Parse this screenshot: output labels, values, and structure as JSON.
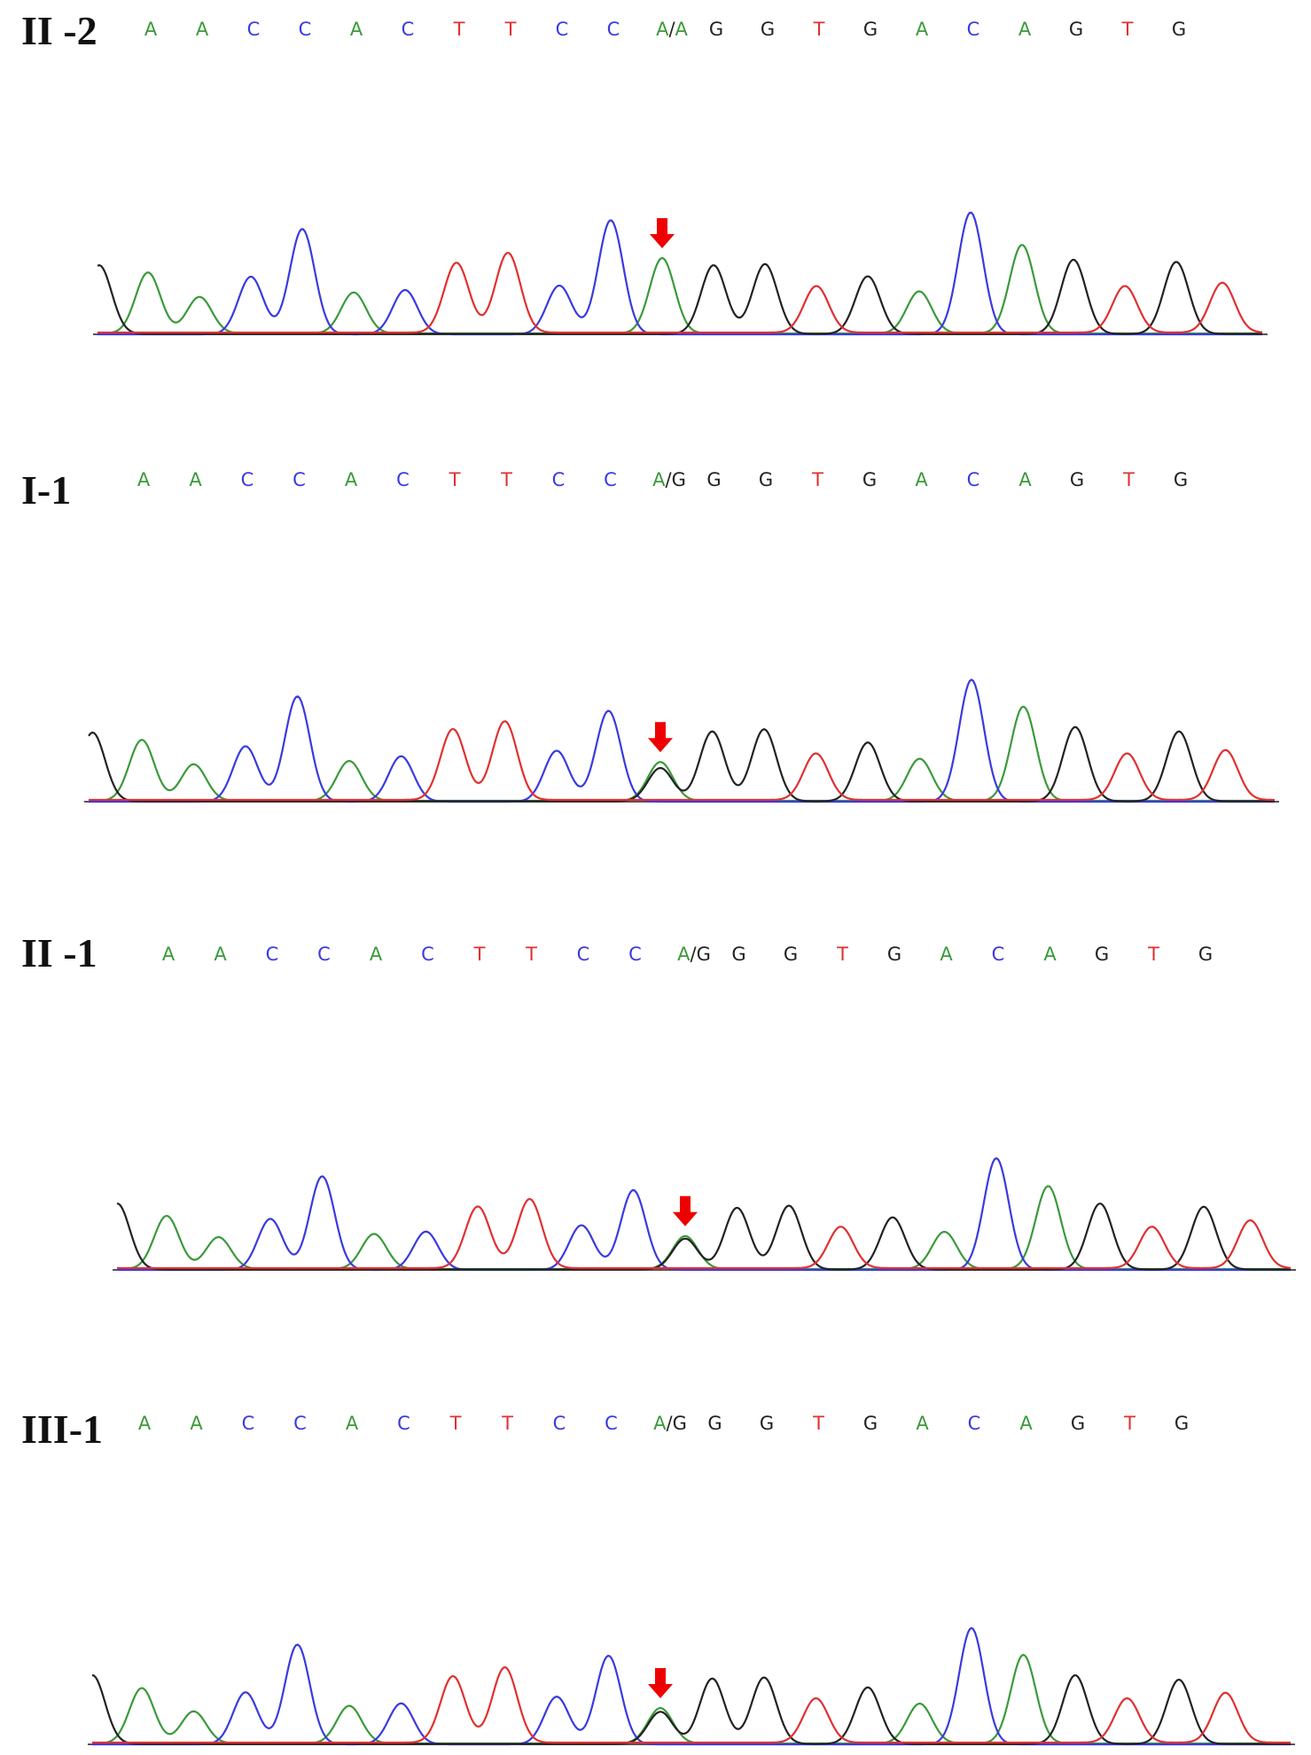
{
  "colors": {
    "A": "#3a9a3a",
    "C": "#3a3ae0",
    "G": "#222222",
    "T": "#e03030",
    "arrow": "#ee0000"
  },
  "chart_data": [
    {
      "type": "chromatogram",
      "label": "II -2",
      "bases": [
        "A",
        "A",
        "C",
        "C",
        "A",
        "C",
        "T",
        "T",
        "C",
        "C",
        "A/A",
        "G",
        "G",
        "T",
        "G",
        "A",
        "C",
        "A",
        "G",
        "T",
        "G"
      ],
      "peaks": [
        [
          {
            "base": "A",
            "h": 0.55
          }
        ],
        [
          {
            "base": "A",
            "h": 0.33
          }
        ],
        [
          {
            "base": "C",
            "h": 0.52
          }
        ],
        [
          {
            "base": "C",
            "h": 0.95
          }
        ],
        [
          {
            "base": "A",
            "h": 0.37
          }
        ],
        [
          {
            "base": "C",
            "h": 0.4
          }
        ],
        [
          {
            "base": "T",
            "h": 0.63
          }
        ],
        [
          {
            "base": "T",
            "h": 0.72
          }
        ],
        [
          {
            "base": "C",
            "h": 0.44
          }
        ],
        [
          {
            "base": "C",
            "h": 1.03
          }
        ],
        [
          {
            "base": "A",
            "h": 0.68
          }
        ],
        [
          {
            "base": "G",
            "h": 0.62
          }
        ],
        [
          {
            "base": "G",
            "h": 0.63
          }
        ],
        [
          {
            "base": "T",
            "h": 0.42
          }
        ],
        [
          {
            "base": "G",
            "h": 0.52
          }
        ],
        [
          {
            "base": "A",
            "h": 0.38
          }
        ],
        [
          {
            "base": "C",
            "h": 1.1
          }
        ],
        [
          {
            "base": "A",
            "h": 0.8
          }
        ],
        [
          {
            "base": "G",
            "h": 0.67
          }
        ],
        [
          {
            "base": "T",
            "h": 0.42
          }
        ],
        [
          {
            "base": "G",
            "h": 0.65
          }
        ]
      ],
      "mutation_index": 10
    },
    {
      "type": "chromatogram",
      "label": "I-1",
      "bases": [
        "A",
        "A",
        "C",
        "C",
        "A",
        "C",
        "T",
        "T",
        "C",
        "C",
        "A/G",
        "G",
        "G",
        "T",
        "G",
        "A",
        "C",
        "A",
        "G",
        "T",
        "G"
      ],
      "peaks": [
        [
          {
            "base": "A",
            "h": 0.55
          }
        ],
        [
          {
            "base": "A",
            "h": 0.33
          }
        ],
        [
          {
            "base": "C",
            "h": 0.5
          }
        ],
        [
          {
            "base": "C",
            "h": 0.95
          }
        ],
        [
          {
            "base": "A",
            "h": 0.36
          }
        ],
        [
          {
            "base": "C",
            "h": 0.41
          }
        ],
        [
          {
            "base": "T",
            "h": 0.64
          }
        ],
        [
          {
            "base": "T",
            "h": 0.71
          }
        ],
        [
          {
            "base": "C",
            "h": 0.46
          }
        ],
        [
          {
            "base": "C",
            "h": 0.82
          }
        ],
        [
          {
            "base": "A",
            "h": 0.35
          },
          {
            "base": "G",
            "h": 0.3
          }
        ],
        [
          {
            "base": "G",
            "h": 0.63
          }
        ],
        [
          {
            "base": "G",
            "h": 0.65
          }
        ],
        [
          {
            "base": "T",
            "h": 0.42
          }
        ],
        [
          {
            "base": "G",
            "h": 0.53
          }
        ],
        [
          {
            "base": "A",
            "h": 0.38
          }
        ],
        [
          {
            "base": "C",
            "h": 1.1
          }
        ],
        [
          {
            "base": "A",
            "h": 0.85
          }
        ],
        [
          {
            "base": "G",
            "h": 0.67
          }
        ],
        [
          {
            "base": "T",
            "h": 0.42
          }
        ],
        [
          {
            "base": "G",
            "h": 0.63
          }
        ]
      ],
      "mutation_index": 10
    },
    {
      "type": "chromatogram",
      "label": "II -1",
      "bases": [
        "A",
        "A",
        "C",
        "C",
        "A",
        "C",
        "T",
        "T",
        "C",
        "C",
        "A/G",
        "G",
        "G",
        "T",
        "G",
        "A",
        "C",
        "A",
        "G",
        "T",
        "G"
      ],
      "peaks": [
        [
          {
            "base": "A",
            "h": 0.5
          }
        ],
        [
          {
            "base": "A",
            "h": 0.3
          }
        ],
        [
          {
            "base": "C",
            "h": 0.48
          }
        ],
        [
          {
            "base": "C",
            "h": 0.88
          }
        ],
        [
          {
            "base": "A",
            "h": 0.33
          }
        ],
        [
          {
            "base": "C",
            "h": 0.36
          }
        ],
        [
          {
            "base": "T",
            "h": 0.58
          }
        ],
        [
          {
            "base": "T",
            "h": 0.65
          }
        ],
        [
          {
            "base": "C",
            "h": 0.42
          }
        ],
        [
          {
            "base": "C",
            "h": 0.75
          }
        ],
        [
          {
            "base": "A",
            "h": 0.31
          },
          {
            "base": "G",
            "h": 0.29
          }
        ],
        [
          {
            "base": "G",
            "h": 0.58
          }
        ],
        [
          {
            "base": "G",
            "h": 0.6
          }
        ],
        [
          {
            "base": "T",
            "h": 0.39
          }
        ],
        [
          {
            "base": "G",
            "h": 0.49
          }
        ],
        [
          {
            "base": "A",
            "h": 0.35
          }
        ],
        [
          {
            "base": "C",
            "h": 1.05
          }
        ],
        [
          {
            "base": "A",
            "h": 0.78
          }
        ],
        [
          {
            "base": "G",
            "h": 0.62
          }
        ],
        [
          {
            "base": "T",
            "h": 0.39
          }
        ],
        [
          {
            "base": "G",
            "h": 0.59
          }
        ]
      ],
      "mutation_index": 10
    },
    {
      "type": "chromatogram",
      "label": "III-1",
      "bases": [
        "A",
        "A",
        "C",
        "C",
        "A",
        "C",
        "T",
        "T",
        "C",
        "C",
        "A/G",
        "G",
        "G",
        "T",
        "G",
        "A",
        "C",
        "A",
        "G",
        "T",
        "G"
      ],
      "peaks": [
        [
          {
            "base": "A",
            "h": 0.5
          }
        ],
        [
          {
            "base": "A",
            "h": 0.29
          }
        ],
        [
          {
            "base": "C",
            "h": 0.47
          }
        ],
        [
          {
            "base": "C",
            "h": 0.9
          }
        ],
        [
          {
            "base": "A",
            "h": 0.34
          }
        ],
        [
          {
            "base": "C",
            "h": 0.37
          }
        ],
        [
          {
            "base": "T",
            "h": 0.6
          }
        ],
        [
          {
            "base": "T",
            "h": 0.68
          }
        ],
        [
          {
            "base": "C",
            "h": 0.43
          }
        ],
        [
          {
            "base": "C",
            "h": 0.8
          }
        ],
        [
          {
            "base": "A",
            "h": 0.32
          },
          {
            "base": "G",
            "h": 0.29
          }
        ],
        [
          {
            "base": "G",
            "h": 0.59
          }
        ],
        [
          {
            "base": "G",
            "h": 0.6
          }
        ],
        [
          {
            "base": "T",
            "h": 0.4
          }
        ],
        [
          {
            "base": "G",
            "h": 0.51
          }
        ],
        [
          {
            "base": "A",
            "h": 0.36
          }
        ],
        [
          {
            "base": "C",
            "h": 1.05
          }
        ],
        [
          {
            "base": "A",
            "h": 0.8
          }
        ],
        [
          {
            "base": "G",
            "h": 0.62
          }
        ],
        [
          {
            "base": "T",
            "h": 0.4
          }
        ],
        [
          {
            "base": "G",
            "h": 0.58
          }
        ]
      ],
      "mutation_index": 10
    }
  ]
}
